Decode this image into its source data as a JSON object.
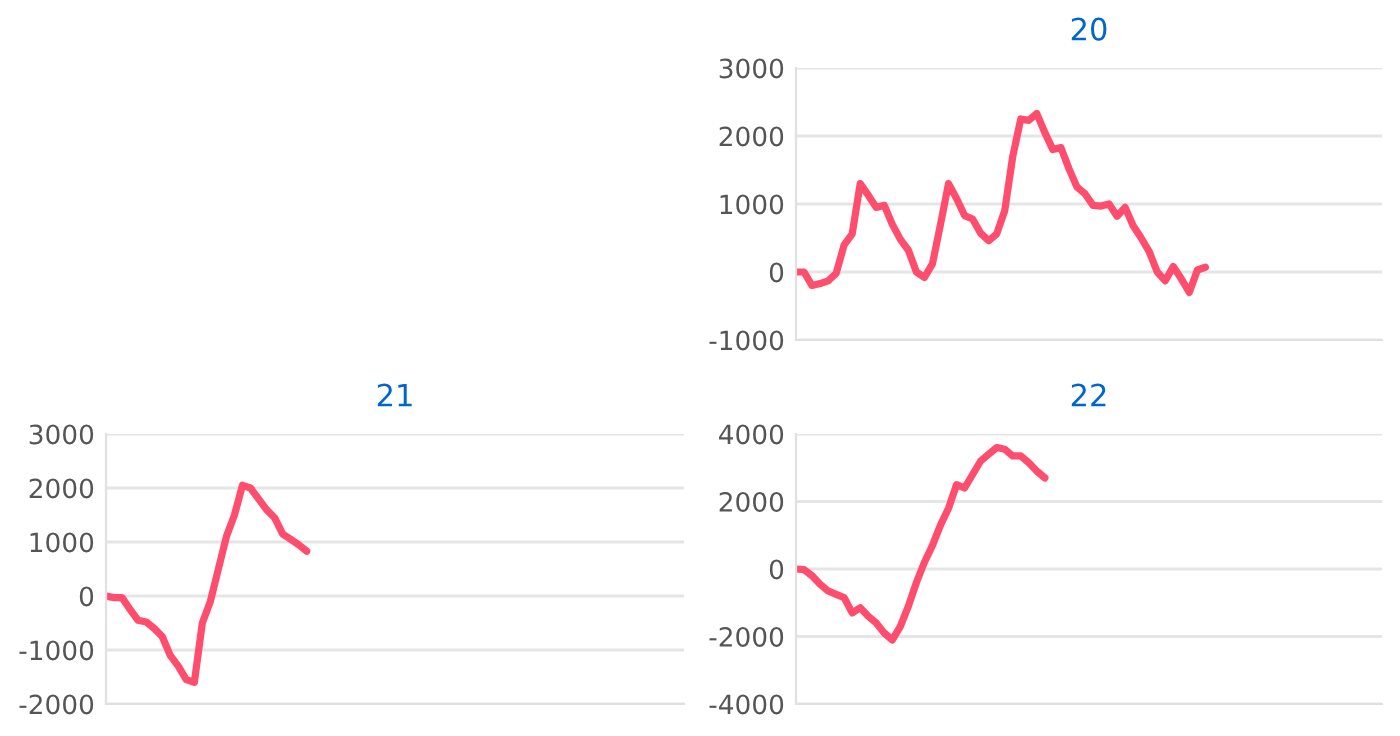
{
  "chart_data": [
    {
      "type": "line",
      "title": "20",
      "categories": [
        null,
        null,
        null,
        null,
        null,
        null,
        null,
        null,
        null,
        null,
        null,
        null,
        null,
        null,
        null,
        null,
        null,
        null,
        null,
        null,
        null,
        null,
        null,
        null,
        null,
        null,
        null,
        null,
        null,
        null,
        null,
        null,
        null,
        null,
        null,
        null,
        null,
        null,
        null,
        null,
        null,
        null,
        null,
        null,
        null,
        null,
        null,
        null,
        null,
        null,
        null,
        null,
        null,
        null,
        null,
        null,
        null,
        null,
        null,
        null,
        null,
        null,
        null,
        null,
        null,
        null,
        null,
        null,
        null,
        null,
        null,
        null,
        null,
        null
      ],
      "series": [
        {
          "color": "#ff4d6d",
          "values": [
            0,
            0,
            -200,
            -170,
            -130,
            -20,
            400,
            560,
            1300,
            1130,
            950,
            980,
            700,
            480,
            320,
            0,
            -80,
            120,
            700,
            1300,
            1080,
            830,
            780,
            570,
            460,
            560,
            900,
            1700,
            2250,
            2230,
            2330,
            2050,
            1800,
            1830,
            1520,
            1250,
            1150,
            980,
            970,
            1000,
            820,
            950,
            680,
            500,
            300,
            0,
            -130,
            80,
            -100,
            -300,
            30,
            70,
            null,
            null,
            null,
            null,
            null,
            null,
            null,
            null,
            null,
            null,
            null,
            null,
            null,
            null,
            null,
            null,
            null,
            null,
            null,
            null,
            null,
            null
          ]
        }
      ],
      "ylim": [
        -1000,
        3000
      ],
      "yticks": [
        -1000,
        0,
        1000,
        2000,
        3000
      ],
      "grid": "y",
      "marker": "none",
      "line_style": "solid",
      "tick_labels": "y"
    },
    {
      "type": "line",
      "title": "21",
      "categories": [
        null,
        null,
        null,
        null,
        null,
        null,
        null,
        null,
        null,
        null,
        null,
        null,
        null,
        null,
        null,
        null,
        null,
        null,
        null,
        null,
        null,
        null,
        null,
        null,
        null,
        null,
        null,
        null,
        null,
        null,
        null,
        null,
        null,
        null,
        null,
        null,
        null,
        null,
        null,
        null,
        null,
        null,
        null,
        null,
        null,
        null,
        null,
        null,
        null,
        null,
        null,
        null,
        null,
        null,
        null,
        null,
        null,
        null,
        null,
        null,
        null,
        null,
        null,
        null,
        null,
        null,
        null,
        null,
        null,
        null,
        null,
        null,
        null
      ],
      "series": [
        {
          "color": "#ff4d6d",
          "values": [
            0,
            -30,
            -30,
            -250,
            -450,
            -480,
            -600,
            -750,
            -1100,
            -1300,
            -1550,
            -1600,
            -500,
            -100,
            500,
            1100,
            1500,
            2050,
            2000,
            1800,
            1600,
            1450,
            1150,
            1050,
            950,
            830,
            null,
            null,
            null,
            null,
            null,
            null,
            null,
            null,
            null,
            null,
            null,
            null,
            null,
            null,
            null,
            null,
            null,
            null,
            null,
            null,
            null,
            null,
            null,
            null,
            null,
            null,
            null,
            null,
            null,
            null,
            null,
            null,
            null,
            null,
            null,
            null,
            null,
            null,
            null,
            null,
            null,
            null,
            null,
            null,
            null,
            null,
            null
          ]
        }
      ],
      "ylim": [
        -2000,
        3000
      ],
      "yticks": [
        -2000,
        -1000,
        0,
        1000,
        2000,
        3000
      ],
      "grid": "y",
      "marker": "none",
      "line_style": "solid",
      "tick_labels": "y"
    },
    {
      "type": "line",
      "title": "22",
      "categories": [
        null,
        null,
        null,
        null,
        null,
        null,
        null,
        null,
        null,
        null,
        null,
        null,
        null,
        null,
        null,
        null,
        null,
        null,
        null,
        null,
        null,
        null,
        null,
        null,
        null,
        null,
        null,
        null,
        null,
        null,
        null,
        null,
        null,
        null,
        null,
        null,
        null,
        null,
        null,
        null,
        null,
        null,
        null,
        null,
        null,
        null,
        null,
        null,
        null,
        null,
        null,
        null,
        null,
        null,
        null,
        null,
        null,
        null,
        null,
        null,
        null,
        null,
        null,
        null,
        null,
        null,
        null,
        null,
        null,
        null,
        null,
        null,
        null,
        null
      ],
      "series": [
        {
          "color": "#ff4d6d",
          "values": [
            0,
            -20,
            -200,
            -450,
            -650,
            -750,
            -850,
            -1300,
            -1150,
            -1400,
            -1600,
            -1900,
            -2100,
            -1700,
            -1100,
            -400,
            200,
            700,
            1300,
            1800,
            2500,
            2400,
            2800,
            3200,
            3400,
            3600,
            3550,
            3350,
            3350,
            3150,
            2900,
            2700,
            null,
            null,
            null,
            null,
            null,
            null,
            null,
            null,
            null,
            null,
            null,
            null,
            null,
            null,
            null,
            null,
            null,
            null,
            null,
            null,
            null,
            null,
            null,
            null,
            null,
            null,
            null,
            null,
            null,
            null,
            null,
            null,
            null,
            null,
            null,
            null,
            null,
            null,
            null,
            null,
            null,
            null
          ]
        }
      ],
      "ylim": [
        -4000,
        4000
      ],
      "yticks": [
        -4000,
        -2000,
        0,
        2000,
        4000
      ],
      "grid": "y",
      "marker": "none",
      "line_style": "solid",
      "tick_labels": "y"
    }
  ]
}
